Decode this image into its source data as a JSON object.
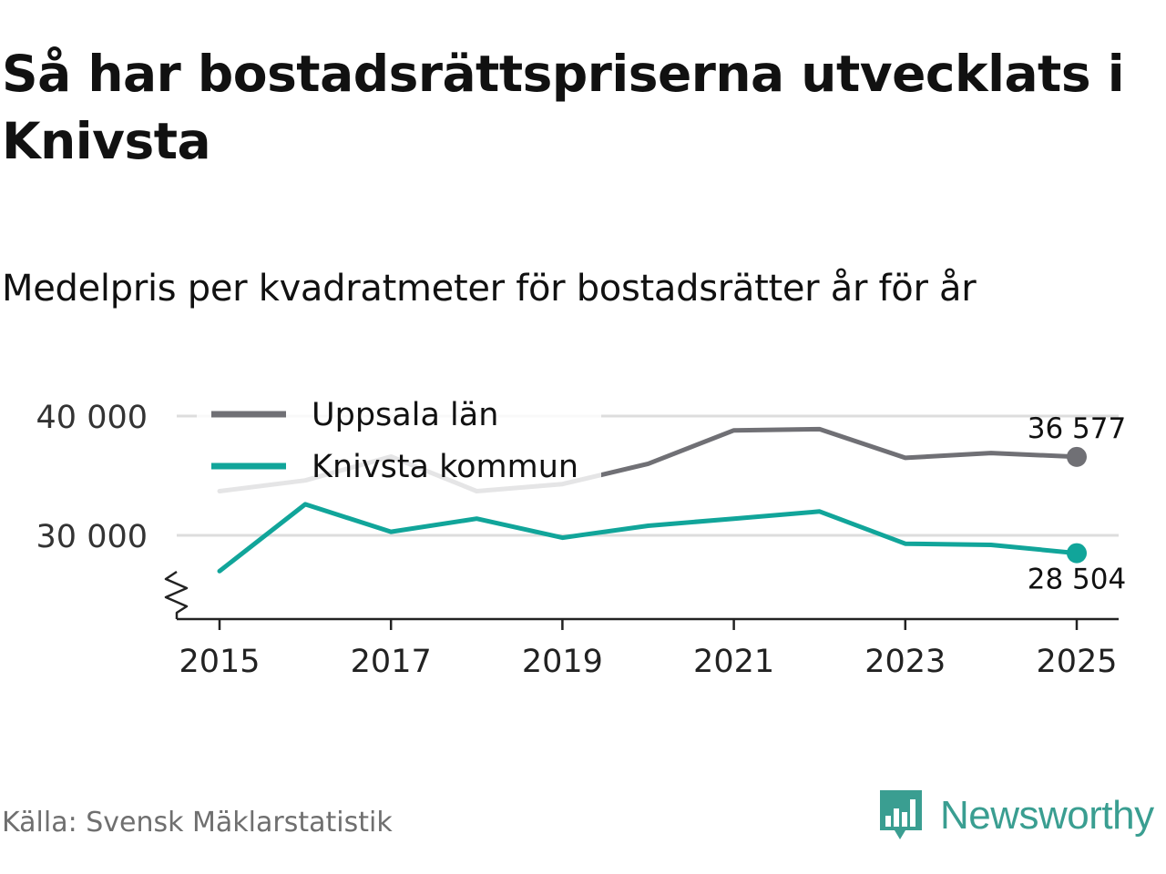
{
  "header": {
    "title": "Så har bostadsrättspriserna utvecklats i Knivsta",
    "subtitle": "Medelpris per kvadratmeter för bostadsrätter år för år"
  },
  "footer": {
    "source": "Källa: Svensk Mäklarstatistik",
    "brand": "Newsworthy"
  },
  "colors": {
    "uppsala": "#707075",
    "knivsta": "#11a59a",
    "grid": "#dddddd",
    "brand": "#3a9e91"
  },
  "chart_data": {
    "type": "line",
    "title": "Medelpris per kvadratmeter för bostadsrätter år för år",
    "x": [
      2015,
      2016,
      2017,
      2018,
      2019,
      2020,
      2021,
      2022,
      2023,
      2024,
      2025
    ],
    "x_ticks": [
      "2015",
      "2017",
      "2019",
      "2021",
      "2023",
      "2025"
    ],
    "y_ticks": [
      30000,
      40000
    ],
    "y_tick_labels": [
      "30 000",
      "40 000"
    ],
    "ylim": [
      23000,
      43000
    ],
    "axis_break": true,
    "legend_position": "top-left",
    "series": [
      {
        "name": "Uppsala län",
        "color": "#707075",
        "values": [
          33700,
          34600,
          36600,
          33700,
          34300,
          36000,
          38800,
          38900,
          36500,
          36900,
          36577
        ],
        "end_label": "36 577"
      },
      {
        "name": "Knivsta kommun",
        "color": "#11a59a",
        "values": [
          27000,
          32600,
          30300,
          31400,
          29800,
          30800,
          31400,
          32000,
          29300,
          29200,
          28504
        ],
        "end_label": "28 504"
      }
    ]
  }
}
